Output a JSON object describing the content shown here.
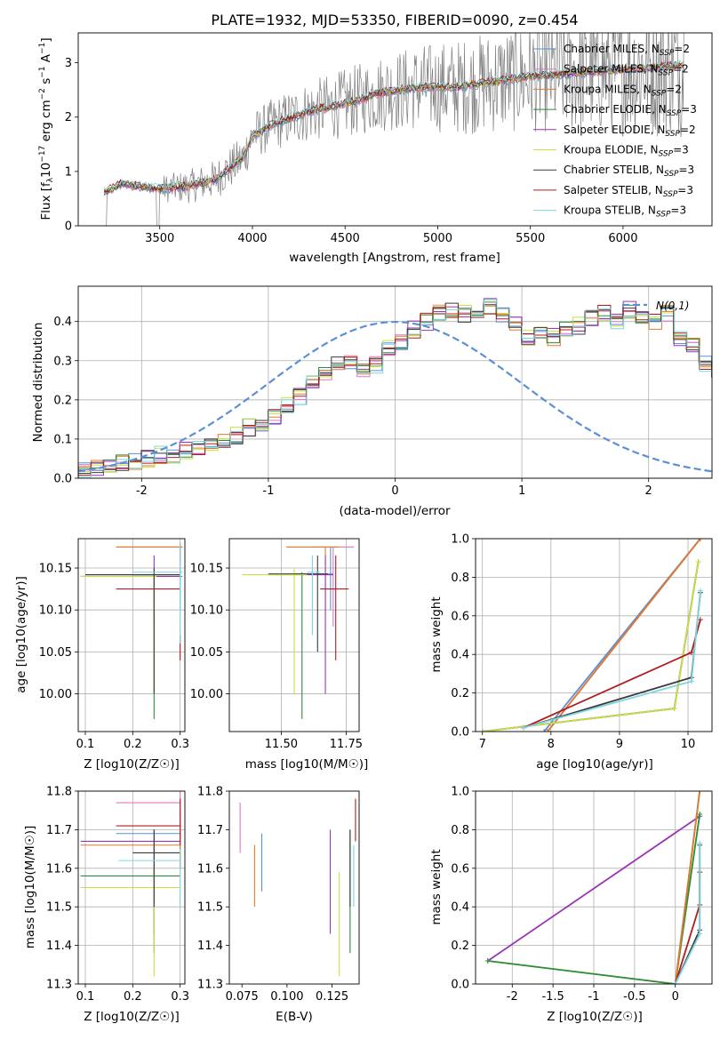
{
  "colors": {
    "Chabrier MILES": "#5b8fd6",
    "Salpeter MILES": "#e377c2",
    "Kroupa MILES": "#e07a28",
    "Chabrier ELODIE": "#2e8b3e",
    "Salpeter ELODIE": "#9a35b5",
    "Kroupa ELODIE": "#c8e040",
    "Chabrier STELIB": "#3a3a3a",
    "Salpeter STELIB": "#b01c1c",
    "Kroupa STELIB": "#7fd6e0",
    "data": "#808080"
  },
  "chart_data": [
    {
      "id": "spectrum",
      "type": "line",
      "title": "PLATE=1932, MJD=53350, FIBERID=0090, z=0.454",
      "xlabel": "wavelength [Angstrom, rest frame]",
      "ylabel": "Flux [f_λ 10^-17 erg cm^-2 s^-1 A^-1]",
      "xlim": [
        3060,
        6480
      ],
      "ylim": [
        0,
        3.55
      ],
      "xticks": [
        3500,
        4000,
        4500,
        5000,
        5500,
        6000
      ],
      "yticks": [
        0,
        1,
        2,
        3
      ],
      "grid": false,
      "legend_position": "top-right",
      "legend": [
        {
          "name": "Chabrier MILES",
          "sub": "SSP",
          "n": "2"
        },
        {
          "name": "Salpeter MILES",
          "sub": "SSP",
          "n": "2"
        },
        {
          "name": "Kroupa MILES",
          "sub": "SSP",
          "n": "2"
        },
        {
          "name": "Chabrier ELODIE",
          "sub": "SSP",
          "n": "3"
        },
        {
          "name": "Salpeter ELODIE",
          "sub": "SSP",
          "n": "2"
        },
        {
          "name": "Kroupa ELODIE",
          "sub": "SSP",
          "n": "3"
        },
        {
          "name": "Chabrier STELIB",
          "sub": "SSP",
          "n": "3"
        },
        {
          "name": "Salpeter STELIB",
          "sub": "SSP",
          "n": "3"
        },
        {
          "name": "Kroupa STELIB",
          "sub": "SSP",
          "n": "3"
        }
      ],
      "model_continuum": {
        "x": [
          3200,
          3300,
          3400,
          3500,
          3650,
          3800,
          3950,
          4000,
          4100,
          4300,
          4500,
          4700,
          4900,
          5100,
          5300,
          5500,
          5700,
          5900,
          6100,
          6300
        ],
        "y": [
          0.62,
          0.78,
          0.72,
          0.68,
          0.72,
          0.85,
          1.25,
          1.65,
          1.85,
          2.1,
          2.25,
          2.45,
          2.55,
          2.55,
          2.65,
          2.75,
          2.8,
          2.85,
          2.9,
          2.95
        ]
      }
    },
    {
      "id": "residuals",
      "type": "histogram",
      "xlabel": "(data-model)/error",
      "ylabel": "Normed distribution",
      "xlim": [
        -2.5,
        2.5
      ],
      "ylim": [
        0,
        0.49
      ],
      "xticks": [
        -2,
        -1,
        0,
        1,
        2
      ],
      "yticks": [
        0.0,
        0.1,
        0.2,
        0.3,
        0.4
      ],
      "grid": true,
      "legend_position": "top-right",
      "legend": [
        {
          "name": "N(0,1)",
          "style": "dashed"
        }
      ],
      "bin_width": 0.1,
      "bins_start": -2.5,
      "base_values": [
        0.02,
        0.025,
        0.03,
        0.04,
        0.045,
        0.05,
        0.06,
        0.055,
        0.07,
        0.08,
        0.09,
        0.095,
        0.11,
        0.13,
        0.14,
        0.16,
        0.19,
        0.21,
        0.24,
        0.27,
        0.29,
        0.3,
        0.28,
        0.29,
        0.33,
        0.35,
        0.38,
        0.4,
        0.42,
        0.43,
        0.42,
        0.43,
        0.44,
        0.42,
        0.4,
        0.36,
        0.37,
        0.36,
        0.38,
        0.39,
        0.41,
        0.42,
        0.4,
        0.43,
        0.41,
        0.4,
        0.42,
        0.36,
        0.34,
        0.29,
        0.27,
        0.25,
        0.22,
        0.2,
        0.19,
        0.17,
        0.16,
        0.15,
        0.14,
        0.12,
        0.11,
        0.09,
        0.08,
        0.07,
        0.06,
        0.05,
        0.045,
        0.04,
        0.035,
        0.03,
        0.035,
        0.04,
        0.04,
        0.035,
        0.03,
        0.04,
        0.045,
        0.05,
        0.04,
        0.035
      ],
      "gaussian": {
        "mean": 0,
        "sigma": 1
      }
    },
    {
      "id": "age_vs_Z",
      "type": "errorbar",
      "xlabel": "Z [log10(Z/Z☉)]",
      "ylabel": "age [log10(age/yr)]",
      "xlim": [
        0.085,
        0.31
      ],
      "ylim": [
        9.955,
        10.185
      ],
      "xticks": [
        0.1,
        0.2,
        0.3
      ],
      "yticks": [
        10.0,
        10.05,
        10.1,
        10.15
      ],
      "grid": true,
      "points": [
        {
          "model": "Chabrier MILES",
          "x": 0.3,
          "y": 10.14,
          "xerr": [
            0.2,
            0.305
          ],
          "yerr": [
            10.1,
            10.175
          ]
        },
        {
          "model": "Salpeter MILES",
          "x": 0.3,
          "y": 10.175,
          "xerr": [
            0.165,
            0.305
          ],
          "yerr": [
            10.15,
            10.18
          ]
        },
        {
          "model": "Kroupa MILES",
          "x": 0.3,
          "y": 10.175,
          "xerr": [
            0.165,
            0.305
          ],
          "yerr": [
            10.16,
            10.18
          ]
        },
        {
          "model": "Chabrier ELODIE",
          "x": 0.245,
          "y": 10.14,
          "xerr": [
            0.09,
            0.3
          ],
          "yerr": [
            9.97,
            10.145
          ]
        },
        {
          "model": "Salpeter ELODIE",
          "x": 0.245,
          "y": 10.14,
          "xerr": [
            0.2,
            0.3
          ],
          "yerr": [
            10.08,
            10.165
          ]
        },
        {
          "model": "Kroupa ELODIE",
          "x": 0.245,
          "y": 10.14,
          "xerr": [
            0.09,
            0.25
          ],
          "yerr": [
            10.0,
            10.145
          ]
        },
        {
          "model": "Chabrier STELIB",
          "x": 0.245,
          "y": 10.142,
          "xerr": [
            0.1,
            0.3
          ],
          "yerr": [
            10.0,
            10.15
          ]
        },
        {
          "model": "Salpeter STELIB",
          "x": 0.3,
          "y": 10.125,
          "xerr": [
            0.165,
            0.3
          ],
          "yerr": [
            10.04,
            10.07
          ]
        },
        {
          "model": "Kroupa STELIB",
          "x": 0.3,
          "y": 10.145,
          "xerr": [
            0.2,
            0.305
          ],
          "yerr": [
            10.06,
            10.18
          ]
        }
      ]
    },
    {
      "id": "age_vs_mass",
      "type": "errorbar",
      "xlabel": "mass [log10(M/M☉)]",
      "ylabel": "",
      "xlim": [
        11.3,
        11.8
      ],
      "ylim": [
        9.955,
        10.185
      ],
      "xticks": [
        11.5,
        11.75
      ],
      "xticklabels": [
        "11.50",
        "11.75"
      ],
      "yticks": [
        10.0,
        10.05,
        10.1,
        10.15
      ],
      "grid": true,
      "points": [
        {
          "model": "Chabrier MILES",
          "x": 11.69,
          "y": 10.143,
          "xerr": [
            11.55,
            11.7
          ],
          "yerr": [
            10.1,
            10.175
          ]
        },
        {
          "model": "Salpeter MILES",
          "x": 11.7,
          "y": 10.175,
          "xerr": [
            11.62,
            11.78
          ],
          "yerr": [
            10.08,
            10.175
          ]
        },
        {
          "model": "Kroupa MILES",
          "x": 11.67,
          "y": 10.175,
          "xerr": [
            11.52,
            11.72
          ],
          "yerr": [
            10.1,
            10.175
          ]
        },
        {
          "model": "Chabrier ELODIE",
          "x": 11.58,
          "y": 10.142,
          "xerr": [
            11.45,
            11.6
          ],
          "yerr": [
            9.97,
            10.145
          ]
        },
        {
          "model": "Salpeter ELODIE",
          "x": 11.67,
          "y": 10.142,
          "xerr": [
            11.6,
            11.7
          ],
          "yerr": [
            10.0,
            10.165
          ]
        },
        {
          "model": "Kroupa ELODIE",
          "x": 11.55,
          "y": 10.142,
          "xerr": [
            11.35,
            11.6
          ],
          "yerr": [
            10.0,
            10.15
          ]
        },
        {
          "model": "Chabrier STELIB",
          "x": 11.64,
          "y": 10.143,
          "xerr": [
            11.45,
            11.68
          ],
          "yerr": [
            10.05,
            10.165
          ]
        },
        {
          "model": "Salpeter STELIB",
          "x": 11.71,
          "y": 10.125,
          "xerr": [
            11.65,
            11.76
          ],
          "yerr": [
            10.04,
            10.165
          ]
        },
        {
          "model": "Kroupa STELIB",
          "x": 11.62,
          "y": 10.145,
          "xerr": [
            11.6,
            11.65
          ],
          "yerr": [
            10.07,
            10.165
          ]
        }
      ]
    },
    {
      "id": "weight_vs_age",
      "type": "line",
      "xlabel": "age [log10(age/yr)]",
      "ylabel": "mass weight",
      "xlim": [
        6.9,
        10.35
      ],
      "ylim": [
        0,
        1.0
      ],
      "xticks": [
        7,
        8,
        9,
        10
      ],
      "yticks": [
        0.0,
        0.2,
        0.4,
        0.6,
        0.8,
        1.0
      ],
      "grid": true,
      "series": [
        {
          "model": "Chabrier MILES",
          "x": [
            7.9,
            10.18
          ],
          "y": [
            0.0,
            1.0
          ]
        },
        {
          "model": "Salpeter MILES",
          "x": [
            7.95,
            10.18
          ],
          "y": [
            0.0,
            1.0
          ]
        },
        {
          "model": "Kroupa MILES",
          "x": [
            7.95,
            10.18
          ],
          "y": [
            0.0,
            1.0
          ]
        },
        {
          "model": "Chabrier ELODIE",
          "x": [
            7.0,
            9.8,
            10.15
          ],
          "y": [
            0.0,
            0.12,
            0.88
          ]
        },
        {
          "model": "Salpeter ELODIE",
          "x": [
            7.0,
            9.8,
            10.15
          ],
          "y": [
            0.0,
            0.12,
            0.88
          ]
        },
        {
          "model": "Kroupa ELODIE",
          "x": [
            7.0,
            9.8,
            10.15
          ],
          "y": [
            0.0,
            0.12,
            0.88
          ]
        },
        {
          "model": "Chabrier STELIB",
          "x": [
            7.6,
            10.05,
            10.18
          ],
          "y": [
            0.02,
            0.28,
            0.72
          ]
        },
        {
          "model": "Salpeter STELIB",
          "x": [
            7.6,
            10.05,
            10.18
          ],
          "y": [
            0.02,
            0.41,
            0.58
          ]
        },
        {
          "model": "Kroupa STELIB",
          "x": [
            7.6,
            10.05,
            10.18
          ],
          "y": [
            0.02,
            0.26,
            0.73
          ]
        }
      ]
    },
    {
      "id": "mass_vs_Z",
      "type": "errorbar",
      "xlabel": "Z [log10(Z/Z☉)]",
      "ylabel": "mass [log10(M/M☉)]",
      "xlim": [
        0.085,
        0.31
      ],
      "ylim": [
        11.3,
        11.8
      ],
      "xticks": [
        0.1,
        0.2,
        0.3
      ],
      "yticks": [
        11.3,
        11.4,
        11.5,
        11.6,
        11.7,
        11.8
      ],
      "grid": true,
      "points": [
        {
          "model": "Chabrier MILES",
          "x": 0.3,
          "y": 11.69,
          "xerr": [
            0.165,
            0.3
          ],
          "yerr": [
            11.6,
            11.75
          ]
        },
        {
          "model": "Salpeter MILES",
          "x": 0.3,
          "y": 11.77,
          "xerr": [
            0.165,
            0.3
          ],
          "yerr": [
            11.7,
            11.8
          ]
        },
        {
          "model": "Kroupa MILES",
          "x": 0.3,
          "y": 11.66,
          "xerr": [
            0.09,
            0.3
          ],
          "yerr": [
            11.6,
            11.72
          ]
        },
        {
          "model": "Chabrier ELODIE",
          "x": 0.245,
          "y": 11.58,
          "xerr": [
            0.09,
            0.3
          ],
          "yerr": [
            11.38,
            11.6
          ]
        },
        {
          "model": "Salpeter ELODIE",
          "x": 0.245,
          "y": 11.67,
          "xerr": [
            0.09,
            0.3
          ],
          "yerr": [
            11.43,
            11.7
          ]
        },
        {
          "model": "Kroupa ELODIE",
          "x": 0.245,
          "y": 11.55,
          "xerr": [
            0.09,
            0.3
          ],
          "yerr": [
            11.32,
            11.6
          ]
        },
        {
          "model": "Chabrier STELIB",
          "x": 0.245,
          "y": 11.64,
          "xerr": [
            0.2,
            0.3
          ],
          "yerr": [
            11.5,
            11.7
          ]
        },
        {
          "model": "Salpeter STELIB",
          "x": 0.3,
          "y": 11.71,
          "xerr": [
            0.165,
            0.3
          ],
          "yerr": [
            11.66,
            11.78
          ]
        },
        {
          "model": "Kroupa STELIB",
          "x": 0.3,
          "y": 11.62,
          "xerr": [
            0.17,
            0.3
          ],
          "yerr": [
            11.5,
            11.65
          ]
        }
      ]
    },
    {
      "id": "mass_vs_EBV",
      "type": "errorbar",
      "xlabel": "E(B-V)",
      "ylabel": "",
      "xlim": [
        0.068,
        0.14
      ],
      "ylim": [
        11.3,
        11.8
      ],
      "xticks": [
        0.075,
        0.1,
        0.125
      ],
      "xticklabels": [
        "0.075",
        "0.100",
        "0.125"
      ],
      "yticks": [
        11.3,
        11.4,
        11.5,
        11.6,
        11.7,
        11.8
      ],
      "grid": false,
      "points": [
        {
          "model": "Chabrier MILES",
          "x": 0.086,
          "y": 11.69,
          "yerr": [
            11.54,
            11.69
          ]
        },
        {
          "model": "Salpeter MILES",
          "x": 0.074,
          "y": 11.77,
          "yerr": [
            11.64,
            11.77
          ]
        },
        {
          "model": "Kroupa MILES",
          "x": 0.082,
          "y": 11.66,
          "yerr": [
            11.5,
            11.66
          ]
        },
        {
          "model": "Chabrier ELODIE",
          "x": 0.135,
          "y": 11.58,
          "yerr": [
            11.38,
            11.7
          ]
        },
        {
          "model": "Salpeter ELODIE",
          "x": 0.124,
          "y": 11.67,
          "yerr": [
            11.43,
            11.7
          ]
        },
        {
          "model": "Kroupa ELODIE",
          "x": 0.129,
          "y": 11.55,
          "yerr": [
            11.32,
            11.59
          ]
        },
        {
          "model": "Chabrier STELIB",
          "x": 0.135,
          "y": 11.64,
          "yerr": [
            11.5,
            11.7
          ]
        },
        {
          "model": "Salpeter STELIB",
          "x": 0.138,
          "y": 11.71,
          "yerr": [
            11.67,
            11.78
          ]
        },
        {
          "model": "Kroupa STELIB",
          "x": 0.137,
          "y": 11.62,
          "yerr": [
            11.5,
            11.66
          ]
        }
      ]
    },
    {
      "id": "weight_vs_Z",
      "type": "line",
      "xlabel": "Z [log10(Z/Z☉)]",
      "ylabel": "mass weight",
      "xlim": [
        -2.45,
        0.45
      ],
      "ylim": [
        0,
        1.0
      ],
      "xticks": [
        -2.0,
        -1.5,
        -1.0,
        -0.5,
        0.0
      ],
      "yticks": [
        0.0,
        0.2,
        0.4,
        0.6,
        0.8,
        1.0
      ],
      "grid": true,
      "series": [
        {
          "model": "Salpeter ELODIE",
          "x": [
            -2.3,
            0.3
          ],
          "y": [
            0.12,
            0.87
          ]
        },
        {
          "model": "Kroupa ELODIE",
          "x": [
            -2.3,
            0.0,
            0.3
          ],
          "y": [
            0.12,
            0.0,
            0.88
          ]
        },
        {
          "model": "Chabrier ELODIE",
          "x": [
            -2.3,
            0.0,
            0.3
          ],
          "y": [
            0.12,
            0.0,
            0.88
          ]
        },
        {
          "model": "Chabrier MILES",
          "x": [
            0.0,
            0.3
          ],
          "y": [
            0.0,
            1.0
          ]
        },
        {
          "model": "Kroupa MILES",
          "x": [
            0.0,
            0.3
          ],
          "y": [
            0.0,
            1.0
          ]
        },
        {
          "model": "Salpeter STELIB",
          "x": [
            0.0,
            0.3,
            0.3
          ],
          "y": [
            0.0,
            0.41,
            0.58
          ]
        },
        {
          "model": "Chabrier STELIB",
          "x": [
            0.0,
            0.3,
            0.3
          ],
          "y": [
            0.0,
            0.28,
            0.72
          ]
        },
        {
          "model": "Kroupa STELIB",
          "x": [
            0.0,
            0.3,
            0.3
          ],
          "y": [
            0.0,
            0.26,
            0.73
          ]
        }
      ]
    }
  ]
}
